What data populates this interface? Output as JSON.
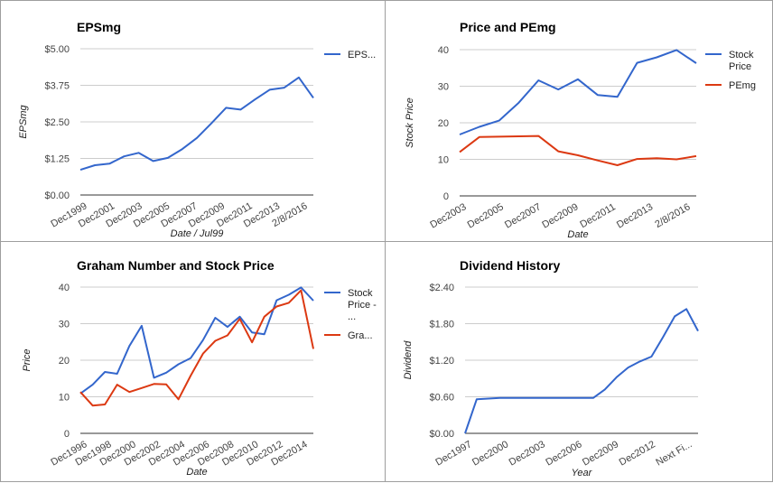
{
  "chart_data": [
    {
      "type": "line",
      "title": "EPSmg",
      "xlabel": "Date / Jul99",
      "ylabel": "EPSmg",
      "y_ticks": [
        "$0.00",
        "$1.25",
        "$2.50",
        "$3.75",
        "$5.00"
      ],
      "ylim": [
        0,
        5
      ],
      "x_tick_labels": [
        "Dec1999",
        "Dec2001",
        "Dec2003",
        "Dec2005",
        "Dec2007",
        "Dec2009",
        "Dec2011",
        "Dec2013",
        "2/8/2016"
      ],
      "legend": [
        "EPS..."
      ],
      "series": [
        {
          "name": "EPSmg",
          "color": "#3366cc",
          "values": [
            0.86,
            1.02,
            1.07,
            1.32,
            1.44,
            1.16,
            1.27,
            1.57,
            1.95,
            2.45,
            2.98,
            2.92,
            3.27,
            3.6,
            3.67,
            4.02,
            3.32
          ]
        }
      ]
    },
    {
      "type": "line",
      "title": "Price and PEmg",
      "xlabel": "Date",
      "ylabel": "Stock Price",
      "y_ticks": [
        "0",
        "10",
        "20",
        "30",
        "40"
      ],
      "ylim": [
        0,
        40
      ],
      "x_tick_labels": [
        "Dec2003",
        "Dec2005",
        "Dec2007",
        "Dec2009",
        "Dec2011",
        "Dec2013",
        "2/8/2016"
      ],
      "legend": [
        "Stock Price",
        "PEmg"
      ],
      "series": [
        {
          "name": "Stock Price",
          "color": "#3366cc",
          "values": [
            16.8,
            18.9,
            20.6,
            25.5,
            31.6,
            29.1,
            31.9,
            27.6,
            27.1,
            36.4,
            37.9,
            39.9,
            36.3
          ]
        },
        {
          "name": "PEmg",
          "color": "#dc3912",
          "values": [
            12.0,
            16.1,
            16.2,
            16.3,
            16.4,
            12.2,
            11.1,
            9.7,
            8.4,
            10.1,
            10.3,
            10.0,
            10.9
          ]
        }
      ]
    },
    {
      "type": "line",
      "title": "Graham Number and Stock Price",
      "xlabel": "Date",
      "ylabel": "Price",
      "y_ticks": [
        "0",
        "10",
        "20",
        "30",
        "40"
      ],
      "ylim": [
        0,
        40
      ],
      "x_tick_labels": [
        "Dec1996",
        "Dec1998",
        "Dec2000",
        "Dec2002",
        "Dec2004",
        "Dec2006",
        "Dec2008",
        "Dec2010",
        "Dec2012",
        "Dec2014"
      ],
      "legend": [
        "Stock Price - ...",
        "Gra..."
      ],
      "series": [
        {
          "name": "Stock Price - ...",
          "color": "#3366cc",
          "values": [
            10.9,
            13.3,
            16.8,
            16.3,
            23.9,
            29.4,
            15.2,
            16.6,
            18.9,
            20.6,
            25.5,
            31.6,
            29.1,
            31.9,
            27.6,
            27.1,
            36.4,
            37.9,
            39.9,
            36.3
          ]
        },
        {
          "name": "Gra...",
          "color": "#dc3912",
          "values": [
            11.3,
            7.6,
            7.9,
            13.3,
            11.3,
            12.4,
            13.5,
            13.4,
            9.3,
            15.8,
            21.8,
            25.3,
            26.8,
            31.3,
            24.9,
            31.9,
            34.7,
            35.7,
            39.1,
            23.1
          ]
        }
      ]
    },
    {
      "type": "line",
      "title": "Dividend History",
      "xlabel": "Year",
      "ylabel": "Dividend",
      "y_ticks": [
        "$0.00",
        "$0.60",
        "$1.20",
        "$1.80",
        "$2.40"
      ],
      "ylim": [
        0,
        2.4
      ],
      "x_tick_labels": [
        "Dec1997",
        "Dec2000",
        "Dec2003",
        "Dec2006",
        "Dec2009",
        "Dec2012",
        "Next Fi..."
      ],
      "legend": [],
      "series": [
        {
          "name": "",
          "color": "#3366cc",
          "values": [
            0.0,
            0.56,
            0.57,
            0.58,
            0.58,
            0.58,
            0.58,
            0.58,
            0.58,
            0.58,
            0.58,
            0.58,
            0.72,
            0.92,
            1.08,
            1.18,
            1.26,
            1.58,
            1.92,
            2.04,
            1.68
          ]
        }
      ]
    }
  ]
}
